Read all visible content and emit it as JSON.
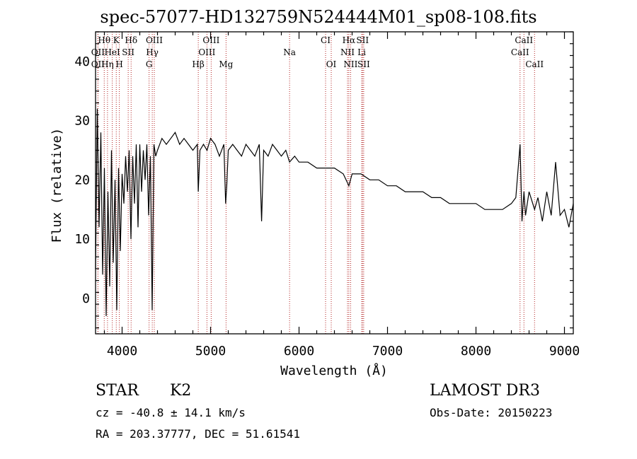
{
  "chart_data": {
    "type": "line",
    "title": "spec-57077-HD132759N524444M01_sp08-108.fits",
    "xlabel": "Wavelength (Å)",
    "ylabel": "Flux (relative)",
    "xlim": [
      3700,
      9100
    ],
    "ylim": [
      -6,
      45
    ],
    "xticks": [
      4000,
      5000,
      6000,
      7000,
      8000,
      9000
    ],
    "yticks": [
      0,
      10,
      20,
      30,
      40
    ],
    "grid": false,
    "series": [
      {
        "name": "spectrum",
        "x": [
          3700,
          3720,
          3740,
          3760,
          3780,
          3800,
          3820,
          3840,
          3860,
          3880,
          3900,
          3920,
          3940,
          3960,
          3980,
          4000,
          4020,
          4040,
          4060,
          4080,
          4100,
          4120,
          4140,
          4160,
          4180,
          4200,
          4220,
          4240,
          4260,
          4280,
          4300,
          4320,
          4340,
          4360,
          4380,
          4400,
          4450,
          4500,
          4550,
          4600,
          4650,
          4700,
          4750,
          4800,
          4850,
          4861,
          4880,
          4920,
          4960,
          5000,
          5050,
          5100,
          5150,
          5170,
          5183,
          5200,
          5250,
          5300,
          5350,
          5400,
          5450,
          5500,
          5550,
          5577,
          5600,
          5650,
          5700,
          5750,
          5800,
          5850,
          5893,
          5950,
          6000,
          6100,
          6200,
          6300,
          6400,
          6500,
          6563,
          6600,
          6700,
          6800,
          6900,
          7000,
          7100,
          7200,
          7300,
          7400,
          7500,
          7600,
          7700,
          7800,
          7900,
          8000,
          8100,
          8200,
          8300,
          8400,
          8450,
          8498,
          8520,
          8542,
          8560,
          8600,
          8662,
          8700,
          8750,
          8800,
          8850,
          8900,
          8950,
          9000,
          9050,
          9100
        ],
        "y": [
          5,
          32,
          12,
          28,
          4,
          22,
          -3,
          18,
          2,
          25,
          6,
          20,
          -2,
          22,
          8,
          21,
          16,
          24,
          18,
          25,
          10,
          24,
          16,
          26,
          12,
          26,
          18,
          25,
          20,
          26,
          14,
          24,
          -2,
          26,
          24,
          25,
          27,
          26,
          27,
          28,
          26,
          27,
          26,
          25,
          26,
          18,
          25,
          26,
          25,
          27,
          26,
          24,
          26,
          16,
          19,
          25,
          26,
          25,
          24,
          26,
          25,
          24,
          26,
          13,
          25,
          24,
          26,
          25,
          24,
          25,
          23,
          24,
          23,
          23,
          22,
          22,
          22,
          21,
          19,
          21,
          21,
          20,
          20,
          19,
          19,
          18,
          18,
          18,
          17,
          17,
          16,
          16,
          16,
          16,
          15,
          15,
          15,
          16,
          17,
          26,
          13,
          18,
          14,
          18,
          15,
          17,
          13,
          18,
          14,
          23,
          14,
          15,
          12,
          16
        ]
      }
    ],
    "line_markers": [
      {
        "label": "Hθ",
        "wave": 3798,
        "row": 1
      },
      {
        "label": "K",
        "wave": 3934,
        "row": 1
      },
      {
        "label": "Hδ",
        "wave": 4102,
        "row": 1
      },
      {
        "label": "OIII",
        "wave": 4364,
        "row": 1
      },
      {
        "label": "OIII",
        "wave": 5007,
        "row": 1
      },
      {
        "label": "CI",
        "wave": 6300,
        "row": 1
      },
      {
        "label": "Hα",
        "wave": 6563,
        "row": 1
      },
      {
        "label": "SII",
        "wave": 6718,
        "row": 1
      },
      {
        "label": "CaII",
        "wave": 8542,
        "row": 1
      },
      {
        "label": "OII",
        "wave": 3727,
        "row": 2
      },
      {
        "label": "HeI",
        "wave": 3889,
        "row": 2
      },
      {
        "label": "SII",
        "wave": 4069,
        "row": 2
      },
      {
        "label": "Hγ",
        "wave": 4341,
        "row": 2
      },
      {
        "label": "OIII",
        "wave": 4959,
        "row": 2
      },
      {
        "label": "Na",
        "wave": 5893,
        "row": 2
      },
      {
        "label": "NII",
        "wave": 6548,
        "row": 2
      },
      {
        "label": "Li",
        "wave": 6708,
        "row": 2
      },
      {
        "label": "CaII",
        "wave": 8498,
        "row": 2
      },
      {
        "label": "OII",
        "wave": 3727,
        "row": 3
      },
      {
        "label": "Hη",
        "wave": 3835,
        "row": 3
      },
      {
        "label": "H",
        "wave": 3969,
        "row": 3
      },
      {
        "label": "G",
        "wave": 4305,
        "row": 3
      },
      {
        "label": "Hβ",
        "wave": 4861,
        "row": 3
      },
      {
        "label": "Mg",
        "wave": 5175,
        "row": 3
      },
      {
        "label": "OI",
        "wave": 6364,
        "row": 3
      },
      {
        "label": "NII",
        "wave": 6583,
        "row": 3
      },
      {
        "label": "SII",
        "wave": 6731,
        "row": 3
      },
      {
        "label": "CaII",
        "wave": 8662,
        "row": 3
      }
    ]
  },
  "info": {
    "object_class": "STAR",
    "subclass": "K2",
    "survey": "LAMOST DR3",
    "redshift": "cz = -40.8 ± 14.1 km/s",
    "obs_date": "Obs-Date: 20150223",
    "coords": "RA = 203.37777, DEC =  51.61541"
  }
}
